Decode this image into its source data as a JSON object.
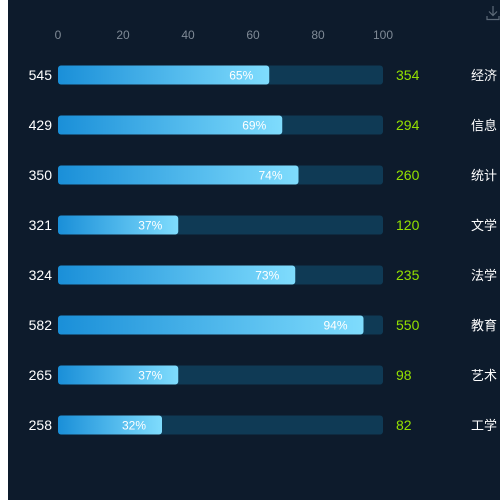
{
  "toolbar": {
    "download_icon": "download-icon"
  },
  "colors": {
    "background": "#0d1b2c",
    "track": "#0f3a55",
    "bar_start": "#1a8fd8",
    "bar_end": "#7fdcfd",
    "count_text": "#94e100",
    "tick_text": "#7f8a96",
    "label_text": "#ffffff"
  },
  "chart_data": {
    "type": "bar",
    "orientation": "horizontal",
    "x_ticks": [
      "0",
      "20",
      "40",
      "60",
      "80",
      "100"
    ],
    "xlim": [
      0,
      100
    ],
    "grid": false,
    "rows": [
      {
        "total": "545",
        "percent": 65,
        "percent_label": "65%",
        "count": "354",
        "category": "经济"
      },
      {
        "total": "429",
        "percent": 69,
        "percent_label": "69%",
        "count": "294",
        "category": "信息"
      },
      {
        "total": "350",
        "percent": 74,
        "percent_label": "74%",
        "count": "260",
        "category": "统计"
      },
      {
        "total": "321",
        "percent": 37,
        "percent_label": "37%",
        "count": "120",
        "category": "文学"
      },
      {
        "total": "324",
        "percent": 73,
        "percent_label": "73%",
        "count": "235",
        "category": "法学"
      },
      {
        "total": "582",
        "percent": 94,
        "percent_label": "94%",
        "count": "550",
        "category": "教育"
      },
      {
        "total": "265",
        "percent": 37,
        "percent_label": "37%",
        "count": "98",
        "category": "艺术"
      },
      {
        "total": "258",
        "percent": 32,
        "percent_label": "32%",
        "count": "82",
        "category": "工学"
      }
    ]
  }
}
